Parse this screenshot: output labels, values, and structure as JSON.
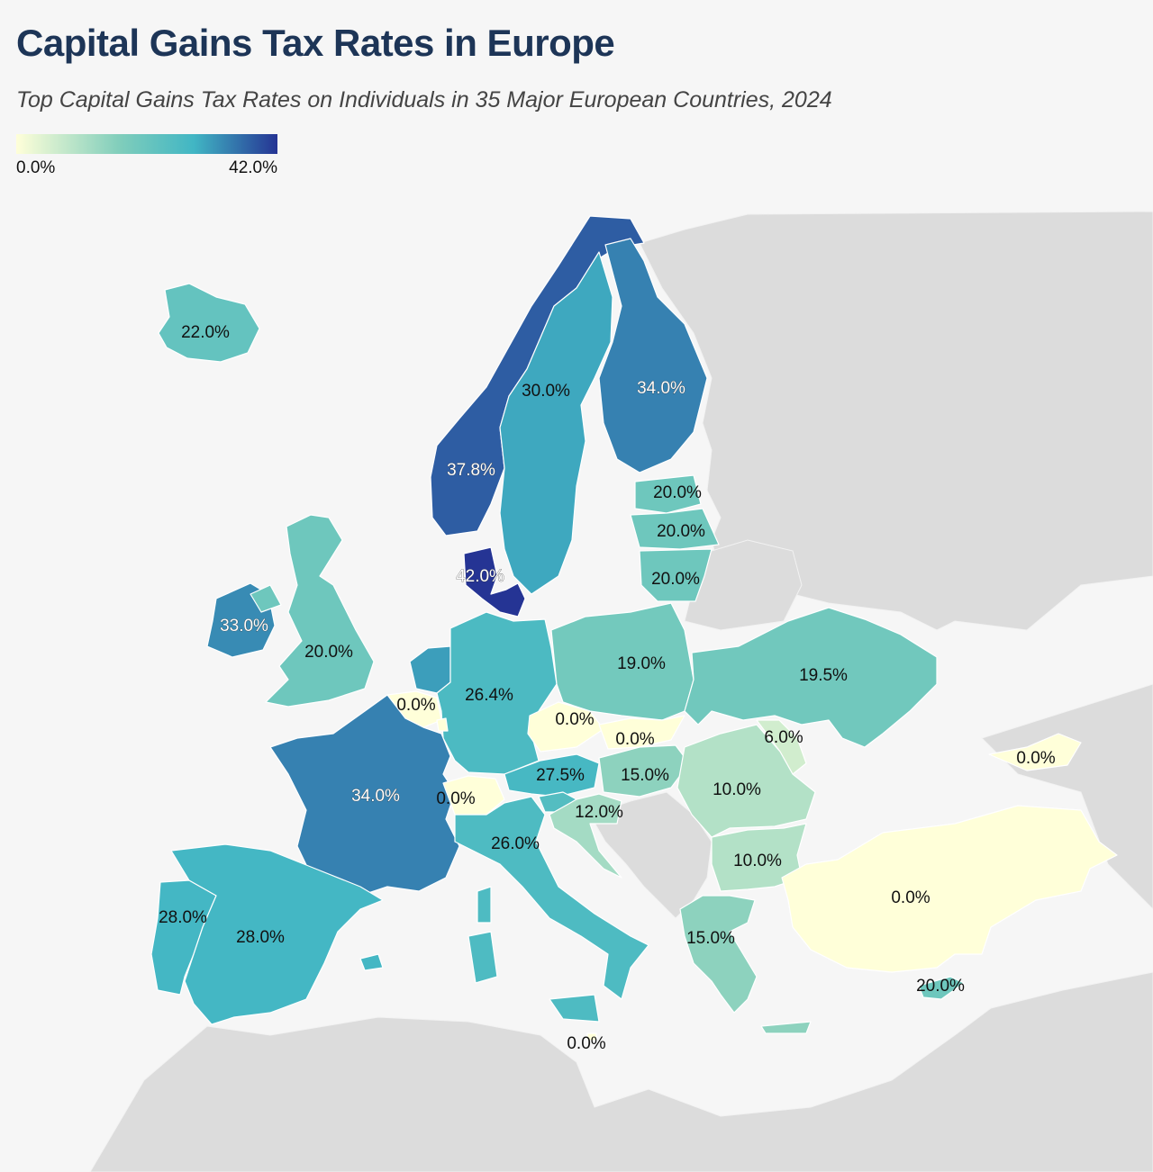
{
  "title": "Capital Gains Tax Rates in Europe",
  "subtitle": "Top Capital Gains Tax Rates on Individuals in 35 Major European Countries, 2024",
  "legend": {
    "min_label": "0.0%",
    "max_label": "42.0%",
    "min_value": 0.0,
    "max_value": 42.0,
    "color_low": "#ffffd9",
    "color_mid": "#7fcdbb",
    "color_midhigh": "#41b6c4",
    "color_high": "#253494"
  },
  "colors": {
    "background": "#f6f6f6",
    "non_data_land": "#dcdcdc",
    "title": "#1d3557"
  },
  "chart_data": {
    "type": "choropleth",
    "regions": [
      {
        "id": "iceland",
        "label": "22.0%",
        "value": 22.0
      },
      {
        "id": "norway",
        "label": "37.8%",
        "value": 37.8
      },
      {
        "id": "sweden",
        "label": "30.0%",
        "value": 30.0
      },
      {
        "id": "finland",
        "label": "34.0%",
        "value": 34.0
      },
      {
        "id": "estonia",
        "label": "20.0%",
        "value": 20.0
      },
      {
        "id": "latvia",
        "label": "20.0%",
        "value": 20.0
      },
      {
        "id": "lithuania",
        "label": "20.0%",
        "value": 20.0
      },
      {
        "id": "denmark",
        "label": "42.0%",
        "value": 42.0
      },
      {
        "id": "ireland",
        "label": "33.0%",
        "value": 33.0
      },
      {
        "id": "united-kingdom",
        "label": "20.0%",
        "value": 20.0
      },
      {
        "id": "netherlands",
        "label": "",
        "value": 31.0
      },
      {
        "id": "belgium",
        "label": "0.0%",
        "value": 0.0
      },
      {
        "id": "luxembourg",
        "label": "",
        "value": 0.0
      },
      {
        "id": "germany",
        "label": "26.4%",
        "value": 26.4
      },
      {
        "id": "poland",
        "label": "19.0%",
        "value": 19.0
      },
      {
        "id": "ukraine",
        "label": "19.5%",
        "value": 19.5
      },
      {
        "id": "czech-republic",
        "label": "0.0%",
        "value": 0.0
      },
      {
        "id": "slovakia",
        "label": "0.0%",
        "value": 0.0
      },
      {
        "id": "moldova",
        "label": "6.0%",
        "value": 6.0
      },
      {
        "id": "georgia",
        "label": "0.0%",
        "value": 0.0
      },
      {
        "id": "austria",
        "label": "27.5%",
        "value": 27.5
      },
      {
        "id": "hungary",
        "label": "15.0%",
        "value": 15.0
      },
      {
        "id": "romania",
        "label": "10.0%",
        "value": 10.0
      },
      {
        "id": "france",
        "label": "34.0%",
        "value": 34.0
      },
      {
        "id": "switzerland",
        "label": "0.0%",
        "value": 0.0
      },
      {
        "id": "slovenia",
        "label": "",
        "value": 25.0
      },
      {
        "id": "croatia",
        "label": "12.0%",
        "value": 12.0
      },
      {
        "id": "italy",
        "label": "26.0%",
        "value": 26.0
      },
      {
        "id": "bulgaria",
        "label": "10.0%",
        "value": 10.0
      },
      {
        "id": "turkey",
        "label": "0.0%",
        "value": 0.0
      },
      {
        "id": "portugal",
        "label": "28.0%",
        "value": 28.0
      },
      {
        "id": "spain",
        "label": "28.0%",
        "value": 28.0
      },
      {
        "id": "greece",
        "label": "15.0%",
        "value": 15.0
      },
      {
        "id": "cyprus",
        "label": "20.0%",
        "value": 20.0
      },
      {
        "id": "malta",
        "label": "0.0%",
        "value": 0.0
      }
    ]
  }
}
